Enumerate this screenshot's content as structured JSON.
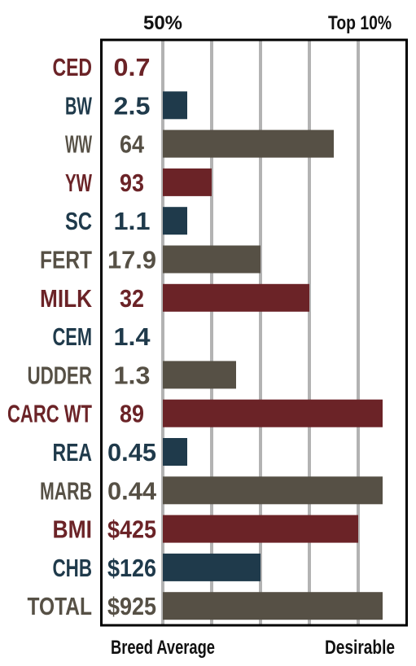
{
  "colors": {
    "red": "#6b2327",
    "navy": "#1f3a4b",
    "taupe": "#565045",
    "grid": "#b3b3b3",
    "frame": "#000000"
  },
  "chart_data": {
    "type": "bar",
    "orientation": "horizontal",
    "top_labels": [
      "50%",
      "Top 10%"
    ],
    "bottom_labels": [
      "Breed Average",
      "Desirable"
    ],
    "xlim": [
      0,
      9
    ],
    "grid": true,
    "rows": [
      {
        "trait": "CED",
        "value": "0.7",
        "bar": 0,
        "color": "red"
      },
      {
        "trait": "BW",
        "value": "2.5",
        "bar": 1,
        "color": "navy"
      },
      {
        "trait": "WW",
        "value": "64",
        "bar": 7,
        "color": "taupe"
      },
      {
        "trait": "YW",
        "value": "93",
        "bar": 2,
        "color": "red"
      },
      {
        "trait": "SC",
        "value": "1.1",
        "bar": 1,
        "color": "navy"
      },
      {
        "trait": "FERT",
        "value": "17.9",
        "bar": 4,
        "color": "taupe"
      },
      {
        "trait": "MILK",
        "value": "32",
        "bar": 6,
        "color": "red"
      },
      {
        "trait": "CEM",
        "value": "1.4",
        "bar": 0,
        "color": "navy"
      },
      {
        "trait": "UDDER",
        "value": "1.3",
        "bar": 3,
        "color": "taupe"
      },
      {
        "trait": "CARC WT",
        "value": "89",
        "bar": 9,
        "color": "red"
      },
      {
        "trait": "REA",
        "value": "0.45",
        "bar": 1,
        "color": "navy"
      },
      {
        "trait": "MARB",
        "value": "0.44",
        "bar": 9,
        "color": "taupe"
      },
      {
        "trait": "BMI",
        "value": "$425",
        "bar": 8,
        "color": "red"
      },
      {
        "trait": "CHB",
        "value": "$126",
        "bar": 4,
        "color": "navy"
      },
      {
        "trait": "TOTAL",
        "value": "$925",
        "bar": 9,
        "color": "taupe"
      }
    ]
  }
}
